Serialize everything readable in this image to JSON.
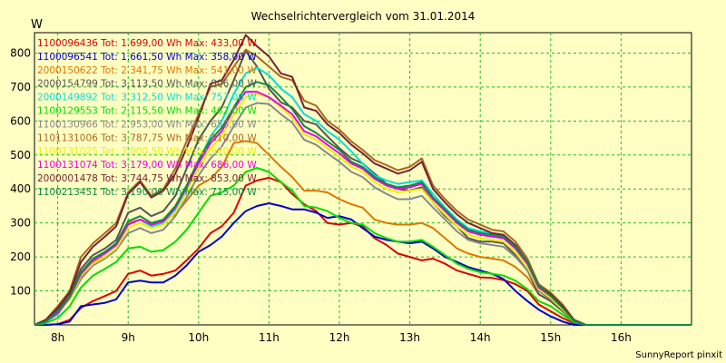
{
  "chart_data": {
    "type": "line",
    "title": "Wechselrichtervergleich vom 31.01.2014",
    "ylabel": "W",
    "xlabel": "",
    "footer": "SunnyReport pinxit",
    "ylim": [
      0,
      860
    ],
    "xlim": [
      7.67,
      17.0
    ],
    "yticks": [
      100,
      200,
      300,
      400,
      500,
      600,
      700,
      800
    ],
    "xticks": [
      {
        "value": 8,
        "label": "8h"
      },
      {
        "value": 9,
        "label": "9h"
      },
      {
        "value": 10,
        "label": "10h"
      },
      {
        "value": 11,
        "label": "11h"
      },
      {
        "value": 12,
        "label": "12h"
      },
      {
        "value": 13,
        "label": "13h"
      },
      {
        "value": 14,
        "label": "14h"
      },
      {
        "value": 15,
        "label": "15h"
      },
      {
        "value": 16,
        "label": "16h"
      }
    ],
    "grid": true,
    "legend_position": "top-left",
    "x": [
      7.67,
      7.83,
      8.0,
      8.17,
      8.33,
      8.5,
      8.67,
      8.83,
      9.0,
      9.17,
      9.33,
      9.5,
      9.67,
      9.83,
      10.0,
      10.17,
      10.33,
      10.5,
      10.67,
      10.83,
      11.0,
      11.17,
      11.33,
      11.5,
      11.67,
      11.83,
      12.0,
      12.17,
      12.33,
      12.5,
      12.67,
      12.83,
      13.0,
      13.17,
      13.33,
      13.5,
      13.67,
      13.83,
      14.0,
      14.17,
      14.33,
      14.5,
      14.67,
      14.83,
      15.0,
      15.17,
      15.33,
      15.5,
      15.67,
      15.83,
      16.0,
      16.17,
      16.33,
      16.5,
      16.67,
      16.83,
      17.0
    ],
    "series": [
      {
        "name": "1100096436 Tot: 1.699,00 Wh Max: 433,00 W",
        "color": "#dd0000",
        "values": [
          0,
          0,
          2,
          15,
          50,
          70,
          85,
          100,
          150,
          160,
          145,
          150,
          160,
          190,
          225,
          270,
          290,
          330,
          410,
          425,
          433,
          420,
          385,
          355,
          335,
          300,
          295,
          300,
          290,
          255,
          235,
          210,
          200,
          190,
          195,
          180,
          160,
          150,
          140,
          138,
          132,
          120,
          100,
          60,
          40,
          20,
          5,
          0,
          0,
          0,
          0,
          0,
          0,
          0,
          0,
          0,
          0
        ]
      },
      {
        "name": "1100096541 Tot: 1.661,50 Wh Max: 358,00 W",
        "color": "#0000cc",
        "values": [
          0,
          0,
          2,
          10,
          55,
          60,
          65,
          75,
          125,
          130,
          125,
          125,
          145,
          175,
          215,
          235,
          260,
          300,
          335,
          350,
          358,
          350,
          340,
          340,
          330,
          315,
          320,
          310,
          285,
          260,
          250,
          245,
          240,
          245,
          225,
          200,
          185,
          170,
          160,
          150,
          135,
          100,
          70,
          45,
          25,
          10,
          0,
          0,
          0,
          0,
          0,
          0,
          0,
          0,
          0,
          0,
          0
        ]
      },
      {
        "name": "2000150622 Tot: 2.341,75 Wh Max: 541,00 W",
        "color": "#dd7700",
        "values": [
          0,
          10,
          40,
          75,
          140,
          185,
          200,
          220,
          300,
          310,
          295,
          305,
          325,
          365,
          410,
          430,
          465,
          535,
          541,
          535,
          500,
          465,
          435,
          395,
          395,
          390,
          370,
          355,
          345,
          310,
          300,
          295,
          295,
          300,
          285,
          255,
          225,
          210,
          200,
          195,
          190,
          170,
          140,
          90,
          70,
          40,
          10,
          0,
          0,
          0,
          0,
          0,
          0,
          0,
          0,
          0,
          0
        ]
      },
      {
        "name": "2000154799 Tot: 3.113,50 Wh Max: 806,00 W",
        "color": "#555555",
        "values": [
          0,
          15,
          45,
          90,
          165,
          205,
          225,
          250,
          330,
          345,
          320,
          335,
          380,
          460,
          545,
          600,
          640,
          720,
          806,
          760,
          695,
          655,
          640,
          600,
          590,
          555,
          520,
          490,
          475,
          445,
          415,
          400,
          395,
          405,
          360,
          320,
          290,
          255,
          245,
          245,
          240,
          205,
          160,
          90,
          70,
          40,
          10,
          0,
          0,
          0,
          0,
          0,
          0,
          0,
          0,
          0,
          0
        ]
      },
      {
        "name": "2000149892 Tot: 3.312,50 Wh Max: 757,00 W",
        "color": "#00dddd",
        "values": [
          0,
          10,
          30,
          80,
          150,
          190,
          210,
          235,
          295,
          310,
          290,
          300,
          340,
          400,
          480,
          555,
          600,
          680,
          740,
          757,
          735,
          695,
          670,
          620,
          600,
          570,
          545,
          510,
          475,
          440,
          425,
          415,
          420,
          425,
          385,
          345,
          310,
          285,
          275,
          270,
          265,
          225,
          180,
          110,
          85,
          50,
          15,
          0,
          0,
          0,
          0,
          0,
          0,
          0,
          0,
          0,
          0
        ]
      },
      {
        "name": "1100129553 Tot: 2.115,50 Wh Max: 462,00 W",
        "color": "#00dd00",
        "values": [
          0,
          5,
          20,
          55,
          110,
          145,
          165,
          185,
          225,
          230,
          215,
          220,
          245,
          280,
          330,
          380,
          390,
          410,
          450,
          462,
          450,
          420,
          395,
          350,
          345,
          335,
          315,
          300,
          295,
          270,
          255,
          245,
          245,
          250,
          230,
          205,
          180,
          165,
          155,
          150,
          145,
          130,
          105,
          70,
          55,
          30,
          8,
          0,
          0,
          0,
          0,
          0,
          0,
          0,
          0,
          0,
          0
        ]
      },
      {
        "name": "1100130966 Tot: 2.953,00 Wh Max: 653,00 W",
        "color": "#888888",
        "values": [
          0,
          10,
          35,
          75,
          135,
          175,
          195,
          220,
          270,
          285,
          270,
          280,
          320,
          375,
          440,
          490,
          525,
          585,
          640,
          653,
          650,
          620,
          595,
          545,
          530,
          505,
          480,
          450,
          435,
          405,
          385,
          370,
          370,
          380,
          345,
          310,
          275,
          250,
          240,
          235,
          230,
          200,
          160,
          100,
          75,
          45,
          12,
          0,
          0,
          0,
          0,
          0,
          0,
          0,
          0,
          0,
          0
        ]
      },
      {
        "name": "1101131006 Tot: 3.787,75 Wh Max: 810,00 W",
        "color": "#aa6622",
        "values": [
          0,
          15,
          55,
          100,
          200,
          240,
          270,
          300,
          390,
          425,
          380,
          400,
          460,
          540,
          620,
          700,
          710,
          760,
          810,
          790,
          760,
          730,
          720,
          660,
          645,
          600,
          575,
          540,
          515,
          485,
          470,
          455,
          465,
          490,
          410,
          370,
          335,
          310,
          295,
          280,
          275,
          245,
          195,
          120,
          95,
          60,
          15,
          0,
          0,
          0,
          0,
          0,
          0,
          0,
          0,
          0,
          0
        ]
      },
      {
        "name": "1100131025 Tot: 3.000,50 Wh Max: 680,00 W",
        "color": "#eeee00",
        "values": [
          0,
          10,
          35,
          75,
          145,
          180,
          200,
          225,
          285,
          300,
          285,
          295,
          330,
          390,
          460,
          520,
          555,
          620,
          670,
          680,
          670,
          640,
          610,
          560,
          545,
          520,
          495,
          465,
          450,
          420,
          400,
          390,
          395,
          400,
          360,
          325,
          290,
          265,
          255,
          250,
          245,
          215,
          170,
          105,
          80,
          45,
          12,
          0,
          0,
          0,
          0,
          0,
          0,
          0,
          0,
          0,
          0
        ]
      },
      {
        "name": "1100131074 Tot: 3.179,00 Wh Max: 686,00 W",
        "color": "#ee00ee",
        "values": [
          0,
          10,
          35,
          80,
          150,
          190,
          210,
          235,
          295,
          310,
          295,
          305,
          345,
          405,
          475,
          535,
          570,
          635,
          686,
          686,
          670,
          645,
          620,
          570,
          555,
          530,
          505,
          475,
          460,
          430,
          410,
          400,
          405,
          415,
          370,
          335,
          300,
          275,
          265,
          260,
          255,
          225,
          180,
          110,
          85,
          50,
          12,
          0,
          0,
          0,
          0,
          0,
          0,
          0,
          0,
          0,
          0
        ]
      },
      {
        "name": "2000001478 Tot: 3.744,75 Wh Max: 853,00 W",
        "color": "#772233",
        "values": [
          0,
          15,
          50,
          95,
          185,
          230,
          260,
          290,
          385,
          420,
          375,
          395,
          445,
          520,
          610,
          710,
          720,
          780,
          853,
          820,
          790,
          740,
          730,
          640,
          630,
          590,
          565,
          530,
          505,
          475,
          460,
          445,
          455,
          480,
          400,
          360,
          325,
          300,
          285,
          270,
          265,
          235,
          185,
          115,
          90,
          55,
          15,
          0,
          0,
          0,
          0,
          0,
          0,
          0,
          0,
          0,
          0
        ]
      },
      {
        "name": "1100213451 Tot: 3.190,00 Wh Max: 715,00 W",
        "color": "#118844",
        "values": [
          0,
          10,
          40,
          80,
          155,
          195,
          215,
          240,
          305,
          320,
          300,
          310,
          350,
          410,
          485,
          545,
          580,
          640,
          700,
          715,
          705,
          670,
          635,
          585,
          565,
          540,
          515,
          480,
          465,
          435,
          415,
          405,
          410,
          420,
          375,
          340,
          305,
          280,
          270,
          265,
          260,
          230,
          185,
          115,
          85,
          50,
          12,
          0,
          0,
          0,
          0,
          0,
          0,
          0,
          0,
          0,
          0
        ]
      }
    ]
  }
}
